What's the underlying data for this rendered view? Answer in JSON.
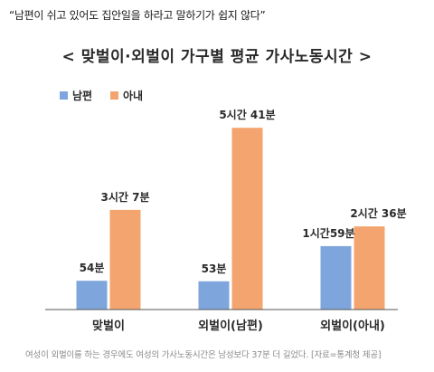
{
  "headline": "“남편이 쉬고 있어도 집안일을 하라고 말하기가 쉽지 않다”",
  "caption": "여성이 외벌이를 하는 경우에도 여성의 가사노동시간은 남성보다 37분 더 길었다. [자료=통계청 제공]",
  "colors": {
    "husband": "#7ea6dd",
    "wife": "#f4a46e",
    "axis": "#555555",
    "text": "#2a2a2a"
  },
  "chart_data": {
    "type": "bar",
    "title": "< 맞벌이·외벌이 가구별 평균 가사노동시간 >",
    "categories": [
      "맞벌이",
      "외벌이(남편)",
      "외벌이(아내)"
    ],
    "unit": "분",
    "series": [
      {
        "name": "남편",
        "values": [
          54,
          53,
          119
        ],
        "labels": [
          "54분",
          "53분",
          "1시간59분"
        ]
      },
      {
        "name": "아내",
        "values": [
          187,
          341,
          156
        ],
        "labels": [
          "3시간 7분",
          "5시간 41분",
          "2시간 36분"
        ]
      }
    ],
    "ylim": [
      0,
      360
    ],
    "legend": "top-left",
    "grid": false
  }
}
